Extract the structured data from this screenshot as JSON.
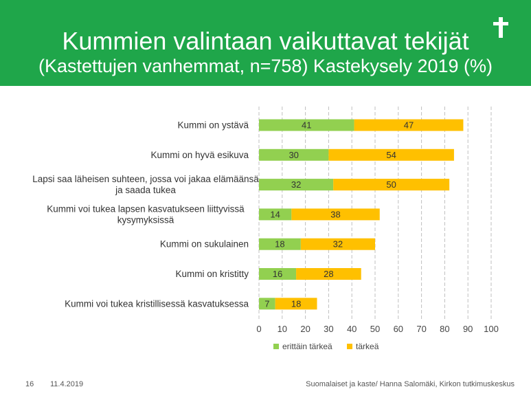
{
  "header": {
    "title": "Kummien valintaan vaikuttavat tekijät",
    "subtitle": "(Kastettujen vanhemmat, n=758) Kastekysely 2019 (%)",
    "icon": "cross-icon",
    "color": "#1fa64a"
  },
  "chart_data": {
    "type": "bar",
    "orientation": "horizontal",
    "stacked": true,
    "categories": [
      [
        "Kummi on ystävä"
      ],
      [
        "Kummi on hyvä esikuva"
      ],
      [
        "Lapsi saa läheisen suhteen, jossa voi jakaa elämäänsä",
        "ja saada tukea"
      ],
      [
        "Kummi voi tukea lapsen kasvatukseen liittyvissä",
        "kysymyksissä"
      ],
      [
        "Kummi on sukulainen"
      ],
      [
        "Kummi on kristitty"
      ],
      [
        "Kummi voi tukea kristillisessä kasvatuksessa"
      ]
    ],
    "series": [
      {
        "name": "erittäin tärkeä",
        "color": "#92d050",
        "values": [
          41,
          30,
          32,
          14,
          18,
          16,
          7
        ]
      },
      {
        "name": "tärkeä",
        "color": "#ffc000",
        "values": [
          47,
          54,
          50,
          38,
          32,
          28,
          18
        ]
      }
    ],
    "xlim": [
      0,
      100
    ],
    "xticks": [
      0,
      10,
      20,
      30,
      40,
      50,
      60,
      70,
      80,
      90,
      100
    ],
    "grid": "vertical dashed",
    "legend_position": "bottom"
  },
  "footer": {
    "page": "16",
    "date": "11.4.2019",
    "source": "Suomalaiset ja kaste/ Hanna Salomäki, Kirkon tutkimuskeskus"
  }
}
